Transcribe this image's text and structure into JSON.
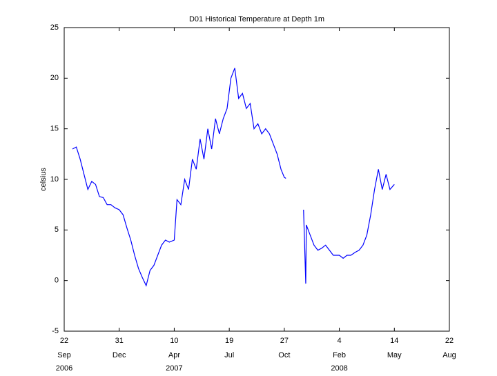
{
  "chart_data": {
    "type": "line",
    "title": "D01 Historical Temperature at Depth 1m",
    "ylabel": "celsius",
    "xlim": [
      "2006-09-22",
      "2008-08-22"
    ],
    "xticks": [
      {
        "value": "2006-09-22",
        "label": "22",
        "month": "Sep",
        "year": "2006"
      },
      {
        "value": "2006-12-31",
        "label": "31",
        "month": "Dec"
      },
      {
        "value": "2007-04-10",
        "label": "10",
        "month": "Apr",
        "year": "2007"
      },
      {
        "value": "2007-07-19",
        "label": "19",
        "month": "Jul"
      },
      {
        "value": "2007-10-27",
        "label": "27",
        "month": "Oct"
      },
      {
        "value": "2008-02-04",
        "label": "4",
        "month": "Feb",
        "year": "2008"
      },
      {
        "value": "2008-05-14",
        "label": "14",
        "month": "May"
      },
      {
        "value": "2008-08-22",
        "label": "22",
        "month": "Aug"
      }
    ],
    "ylim": [
      -5,
      25
    ],
    "yticks": [
      -5,
      0,
      5,
      10,
      15,
      20,
      25
    ],
    "x": [
      "2006-10-07",
      "2006-10-14",
      "2006-10-21",
      "2006-10-28",
      "2006-11-04",
      "2006-11-11",
      "2006-11-18",
      "2006-11-25",
      "2006-12-02",
      "2006-12-09",
      "2006-12-16",
      "2006-12-23",
      "2006-12-31",
      "2007-01-07",
      "2007-01-14",
      "2007-01-21",
      "2007-01-28",
      "2007-02-04",
      "2007-02-11",
      "2007-02-18",
      "2007-02-25",
      "2007-03-04",
      "2007-03-11",
      "2007-03-18",
      "2007-03-25",
      "2007-04-01",
      "2007-04-10",
      "2007-04-15",
      "2007-04-22",
      "2007-04-29",
      "2007-05-06",
      "2007-05-13",
      "2007-05-20",
      "2007-05-27",
      "2007-06-03",
      "2007-06-10",
      "2007-06-17",
      "2007-06-24",
      "2007-07-01",
      "2007-07-08",
      "2007-07-15",
      "2007-07-22",
      "2007-07-29",
      "2007-08-05",
      "2007-08-12",
      "2007-08-19",
      "2007-08-26",
      "2007-09-02",
      "2007-09-09",
      "2007-09-16",
      "2007-09-23",
      "2007-09-30",
      "2007-10-07",
      "2007-10-14",
      "2007-10-21",
      "2007-10-27",
      "2007-10-30",
      "2007-11-15",
      "2007-12-01",
      "2007-12-05",
      "2007-12-06",
      "2007-12-13",
      "2007-12-20",
      "2007-12-27",
      "2008-01-03",
      "2008-01-10",
      "2008-01-17",
      "2008-01-24",
      "2008-02-04",
      "2008-02-11",
      "2008-02-18",
      "2008-02-25",
      "2008-03-04",
      "2008-03-11",
      "2008-03-18",
      "2008-03-25",
      "2008-04-01",
      "2008-04-08",
      "2008-04-15",
      "2008-04-22",
      "2008-04-29",
      "2008-05-06",
      "2008-05-14"
    ],
    "series": [
      {
        "name": "temperature",
        "color": "#0000ff",
        "values": [
          13,
          13.2,
          12,
          10.5,
          9,
          9.8,
          9.5,
          8.3,
          8.2,
          7.5,
          7.5,
          7.2,
          7.0,
          6.5,
          5.2,
          4,
          2.5,
          1.2,
          0.3,
          -0.5,
          1.0,
          1.5,
          2.5,
          3.5,
          4,
          3.8,
          4.0,
          8,
          7.5,
          10,
          9,
          12,
          11,
          14,
          12,
          15,
          13,
          16,
          14.5,
          16,
          17,
          20,
          21,
          18,
          18.5,
          17,
          17.5,
          15,
          15.5,
          14.5,
          15,
          14.5,
          13.5,
          12.5,
          11,
          10.2,
          10.1,
          null,
          7,
          -0.3,
          5.5,
          4.5,
          3.5,
          3,
          3.2,
          3.5,
          3,
          2.5,
          2.5,
          2.2,
          2.5,
          2.5,
          2.8,
          3,
          3.5,
          4.5,
          6.5,
          9,
          11,
          9,
          10.5,
          9,
          9.5
        ]
      }
    ]
  }
}
